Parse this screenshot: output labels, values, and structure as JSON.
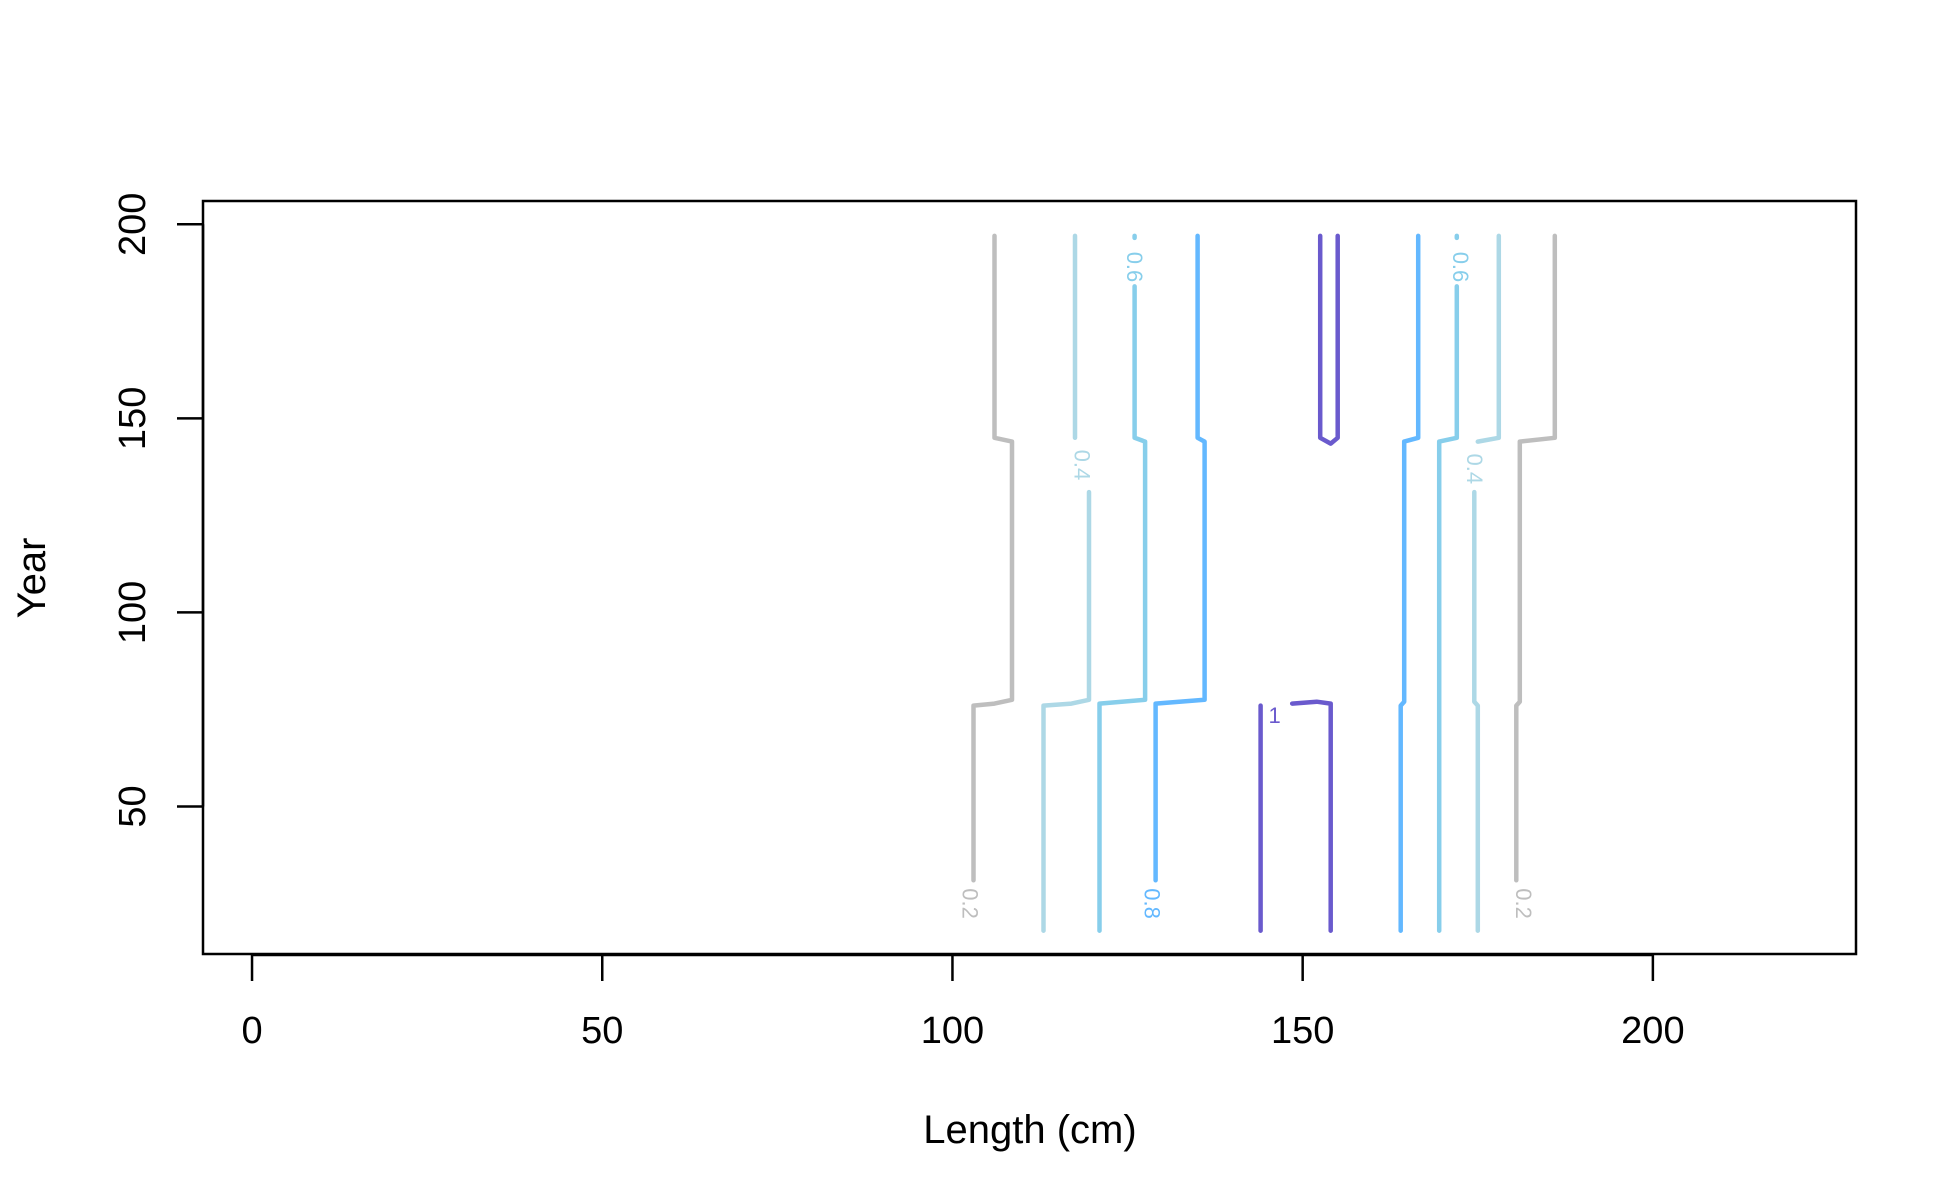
{
  "chart_data": {
    "type": "contour",
    "title": "",
    "xlabel": "Length (cm)",
    "ylabel": "Year",
    "xlim": [
      -7,
      229
    ],
    "ylim": [
      12,
      206
    ],
    "xticks": [
      0,
      50,
      100,
      150,
      200
    ],
    "yticks": [
      50,
      100,
      150,
      200
    ],
    "grid": false,
    "legend": "none",
    "levels": [
      {
        "level": "0.2",
        "color": "#bebebe",
        "lines": [
          {
            "points": [
              [
                106,
                197
              ],
              [
                106,
                145
              ],
              [
                108.5,
                144
              ],
              [
                108.5,
                77.5
              ],
              [
                106,
                76.5
              ],
              [
                103,
                76
              ],
              [
                103,
                31
              ]
            ],
            "label": {
              "text": "0.2",
              "x": 102.5,
              "y": 25
            }
          },
          {
            "points": [
              [
                186,
                197
              ],
              [
                186,
                145
              ],
              [
                181,
                144
              ],
              [
                181,
                77
              ],
              [
                180.5,
                76
              ],
              [
                180.5,
                31
              ]
            ],
            "label": {
              "text": "0.2",
              "x": 181.5,
              "y": 25
            }
          }
        ]
      },
      {
        "level": "0.4",
        "color": "#add8e6",
        "lines": [
          {
            "points": [
              [
                117.5,
                197
              ],
              [
                117.5,
                145
              ]
            ],
            "label": {
              "text": "0.4",
              "x": 118.5,
              "y": 138
            }
          },
          {
            "points": [
              [
                119.5,
                131
              ],
              [
                119.5,
                77.5
              ],
              [
                117,
                76.5
              ],
              [
                113,
                76
              ],
              [
                113,
                18
              ]
            ]
          },
          {
            "points": [
              [
                178,
                197
              ],
              [
                178,
                145
              ],
              [
                175,
                144
              ]
            ],
            "label": {
              "text": "0.4",
              "x": 174.5,
              "y": 137
            }
          },
          {
            "points": [
              [
                174.5,
                131
              ],
              [
                174.5,
                77
              ],
              [
                175,
                76
              ],
              [
                175,
                18
              ]
            ]
          }
        ]
      },
      {
        "level": "0.6",
        "color": "#87ceeb",
        "lines": [
          {
            "points": [
              [
                126,
                197
              ],
              [
                126,
                196.5
              ]
            ],
            "label": {
              "text": "0.6",
              "x": 126,
              "y": 189
            }
          },
          {
            "points": [
              [
                126,
                184
              ],
              [
                126,
                145
              ],
              [
                127.5,
                144
              ],
              [
                127.5,
                77.5
              ],
              [
                121,
                76.5
              ],
              [
                121,
                18
              ]
            ]
          },
          {
            "points": [
              [
                172,
                197
              ],
              [
                172,
                196.5
              ]
            ],
            "label": {
              "text": "0.6",
              "x": 172.5,
              "y": 189
            }
          },
          {
            "points": [
              [
                172,
                184
              ],
              [
                172,
                145
              ],
              [
                169.5,
                144
              ],
              [
                169.5,
                18
              ]
            ]
          }
        ]
      },
      {
        "level": "0.8",
        "color": "#63b8ff",
        "lines": [
          {
            "points": [
              [
                135,
                197
              ],
              [
                135,
                145
              ],
              [
                136,
                144
              ],
              [
                136,
                77.5
              ],
              [
                129,
                76.5
              ],
              [
                129,
                31
              ]
            ],
            "label": {
              "text": "0.8",
              "x": 128.5,
              "y": 25
            }
          },
          {
            "points": [
              [
                166.5,
                197
              ],
              [
                166.5,
                145
              ],
              [
                164.5,
                144
              ],
              [
                164.5,
                77
              ],
              [
                164,
                76
              ],
              [
                164,
                18
              ]
            ]
          }
        ]
      },
      {
        "level": "1",
        "color": "#6a5acd",
        "lines": [
          {
            "points": [
              [
                152.5,
                197
              ],
              [
                152.5,
                145
              ],
              [
                154,
                143.5
              ],
              [
                155,
                145
              ],
              [
                155,
                197
              ]
            ]
          },
          {
            "points": [
              [
                144,
                18
              ],
              [
                144,
                76
              ]
            ]
          },
          {
            "points": [
              [
                148.5,
                76.5
              ],
              [
                152,
                77
              ],
              [
                154,
                76.5
              ],
              [
                154,
                18
              ]
            ],
            "label": {
              "text": "1",
              "x": 146,
              "y": 73.5
            }
          }
        ]
      }
    ]
  }
}
